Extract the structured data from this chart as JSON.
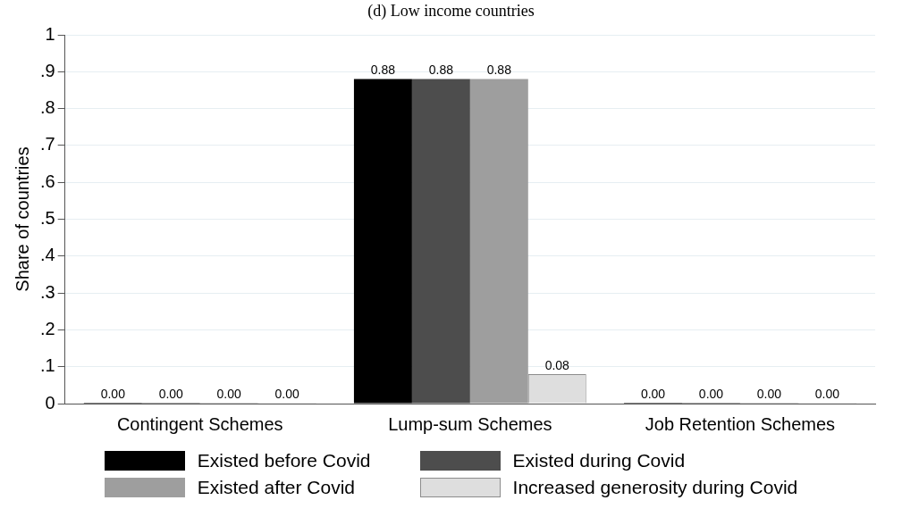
{
  "chart_data": {
    "type": "bar",
    "title": "(d) Low income countries",
    "ylabel": "Share of countries",
    "categories": [
      "Contingent Schemes",
      "Lump-sum Schemes",
      "Job Retention Schemes"
    ],
    "series": [
      {
        "name": "Existed before Covid",
        "color": "#000000",
        "values": [
          0,
          0.88,
          0
        ],
        "value_labels": [
          "0.00",
          "0.88",
          "0.00"
        ]
      },
      {
        "name": "Existed during Covid",
        "color": "#4d4d4d",
        "values": [
          0,
          0.88,
          0
        ],
        "value_labels": [
          "0.00",
          "0.88",
          "0.00"
        ]
      },
      {
        "name": "Existed after Covid",
        "color": "#9e9e9e",
        "values": [
          0,
          0.88,
          0
        ],
        "value_labels": [
          "0.00",
          "0.88",
          "0.00"
        ]
      },
      {
        "name": "Increased generosity during Covid",
        "color": "#dedede",
        "values": [
          0,
          0.08,
          0
        ],
        "value_labels": [
          "0.00",
          "0.08",
          "0.00"
        ]
      }
    ],
    "ylim": [
      0,
      1
    ],
    "yticks": [
      0,
      {
        "value": 0.1,
        "label": ".1"
      },
      {
        "value": 0.2,
        "label": ".2"
      },
      {
        "value": 0.3,
        "label": ".3"
      },
      {
        "value": 0.4,
        "label": ".4"
      },
      {
        "value": 0.5,
        "label": ".5"
      },
      {
        "value": 0.6,
        "label": ".6"
      },
      {
        "value": 0.7,
        "label": ".7"
      },
      {
        "value": 0.8,
        "label": ".8"
      },
      {
        "value": 0.9,
        "label": ".9"
      },
      1
    ],
    "grid": "y",
    "legend": "bottom"
  }
}
